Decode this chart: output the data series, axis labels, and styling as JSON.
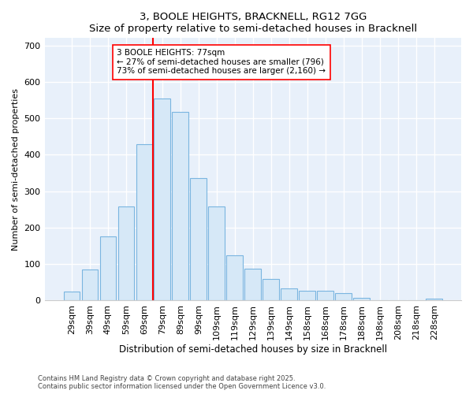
{
  "title": "3, BOOLE HEIGHTS, BRACKNELL, RG12 7GG",
  "subtitle": "Size of property relative to semi-detached houses in Bracknell",
  "xlabel": "Distribution of semi-detached houses by size in Bracknell",
  "ylabel": "Number of semi-detached properties",
  "bins": [
    "29sqm",
    "39sqm",
    "49sqm",
    "59sqm",
    "69sqm",
    "79sqm",
    "89sqm",
    "99sqm",
    "109sqm",
    "119sqm",
    "129sqm",
    "139sqm",
    "149sqm",
    "158sqm",
    "168sqm",
    "178sqm",
    "188sqm",
    "198sqm",
    "208sqm",
    "218sqm",
    "228sqm"
  ],
  "values": [
    25,
    85,
    175,
    258,
    430,
    555,
    518,
    335,
    258,
    125,
    88,
    60,
    33,
    27,
    27,
    20,
    8,
    0,
    0,
    0,
    5
  ],
  "bar_color": "#d6e8f7",
  "bar_edge_color": "#7ab5e0",
  "vline_bin_index": 5,
  "vline_color": "red",
  "annotation_text": "3 BOOLE HEIGHTS: 77sqm\n← 27% of semi-detached houses are smaller (796)\n73% of semi-detached houses are larger (2,160) →",
  "footnote1": "Contains HM Land Registry data © Crown copyright and database right 2025.",
  "footnote2": "Contains public sector information licensed under the Open Government Licence v3.0.",
  "bg_color": "#ffffff",
  "plot_bg_color": "#e8f0fa",
  "ylim": [
    0,
    720
  ],
  "yticks": [
    0,
    100,
    200,
    300,
    400,
    500,
    600,
    700
  ]
}
